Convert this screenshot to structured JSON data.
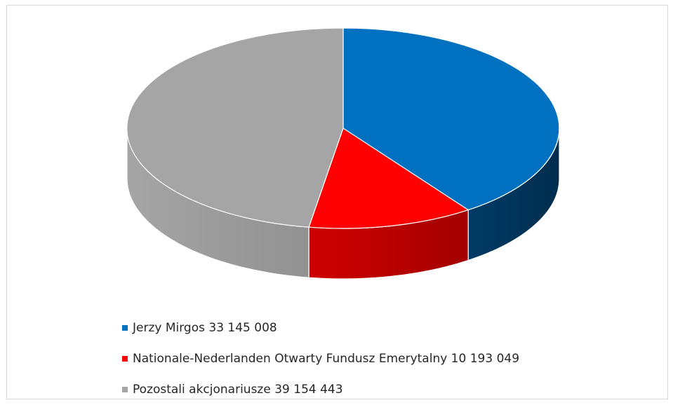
{
  "chart_data": {
    "type": "pie",
    "title": "",
    "legend_position": "bottom",
    "start_angle_deg": 90,
    "direction": "clockwise",
    "slices": [
      {
        "label": "Jerzy Mirgos 33 145 008",
        "value": 33145008,
        "color": "#0070c0",
        "side_color": "#002d4e"
      },
      {
        "label": "Nationale-Nederlanden Otwarty Fundusz Emerytalny 10 193 049",
        "value": 10193049,
        "color": "#ff0000",
        "side_color": "#8b0000"
      },
      {
        "label": "Pozostali akcjonariusze 39 154 443",
        "value": 39154443,
        "color": "#a5a5a5",
        "side_color": "#777777"
      }
    ]
  }
}
